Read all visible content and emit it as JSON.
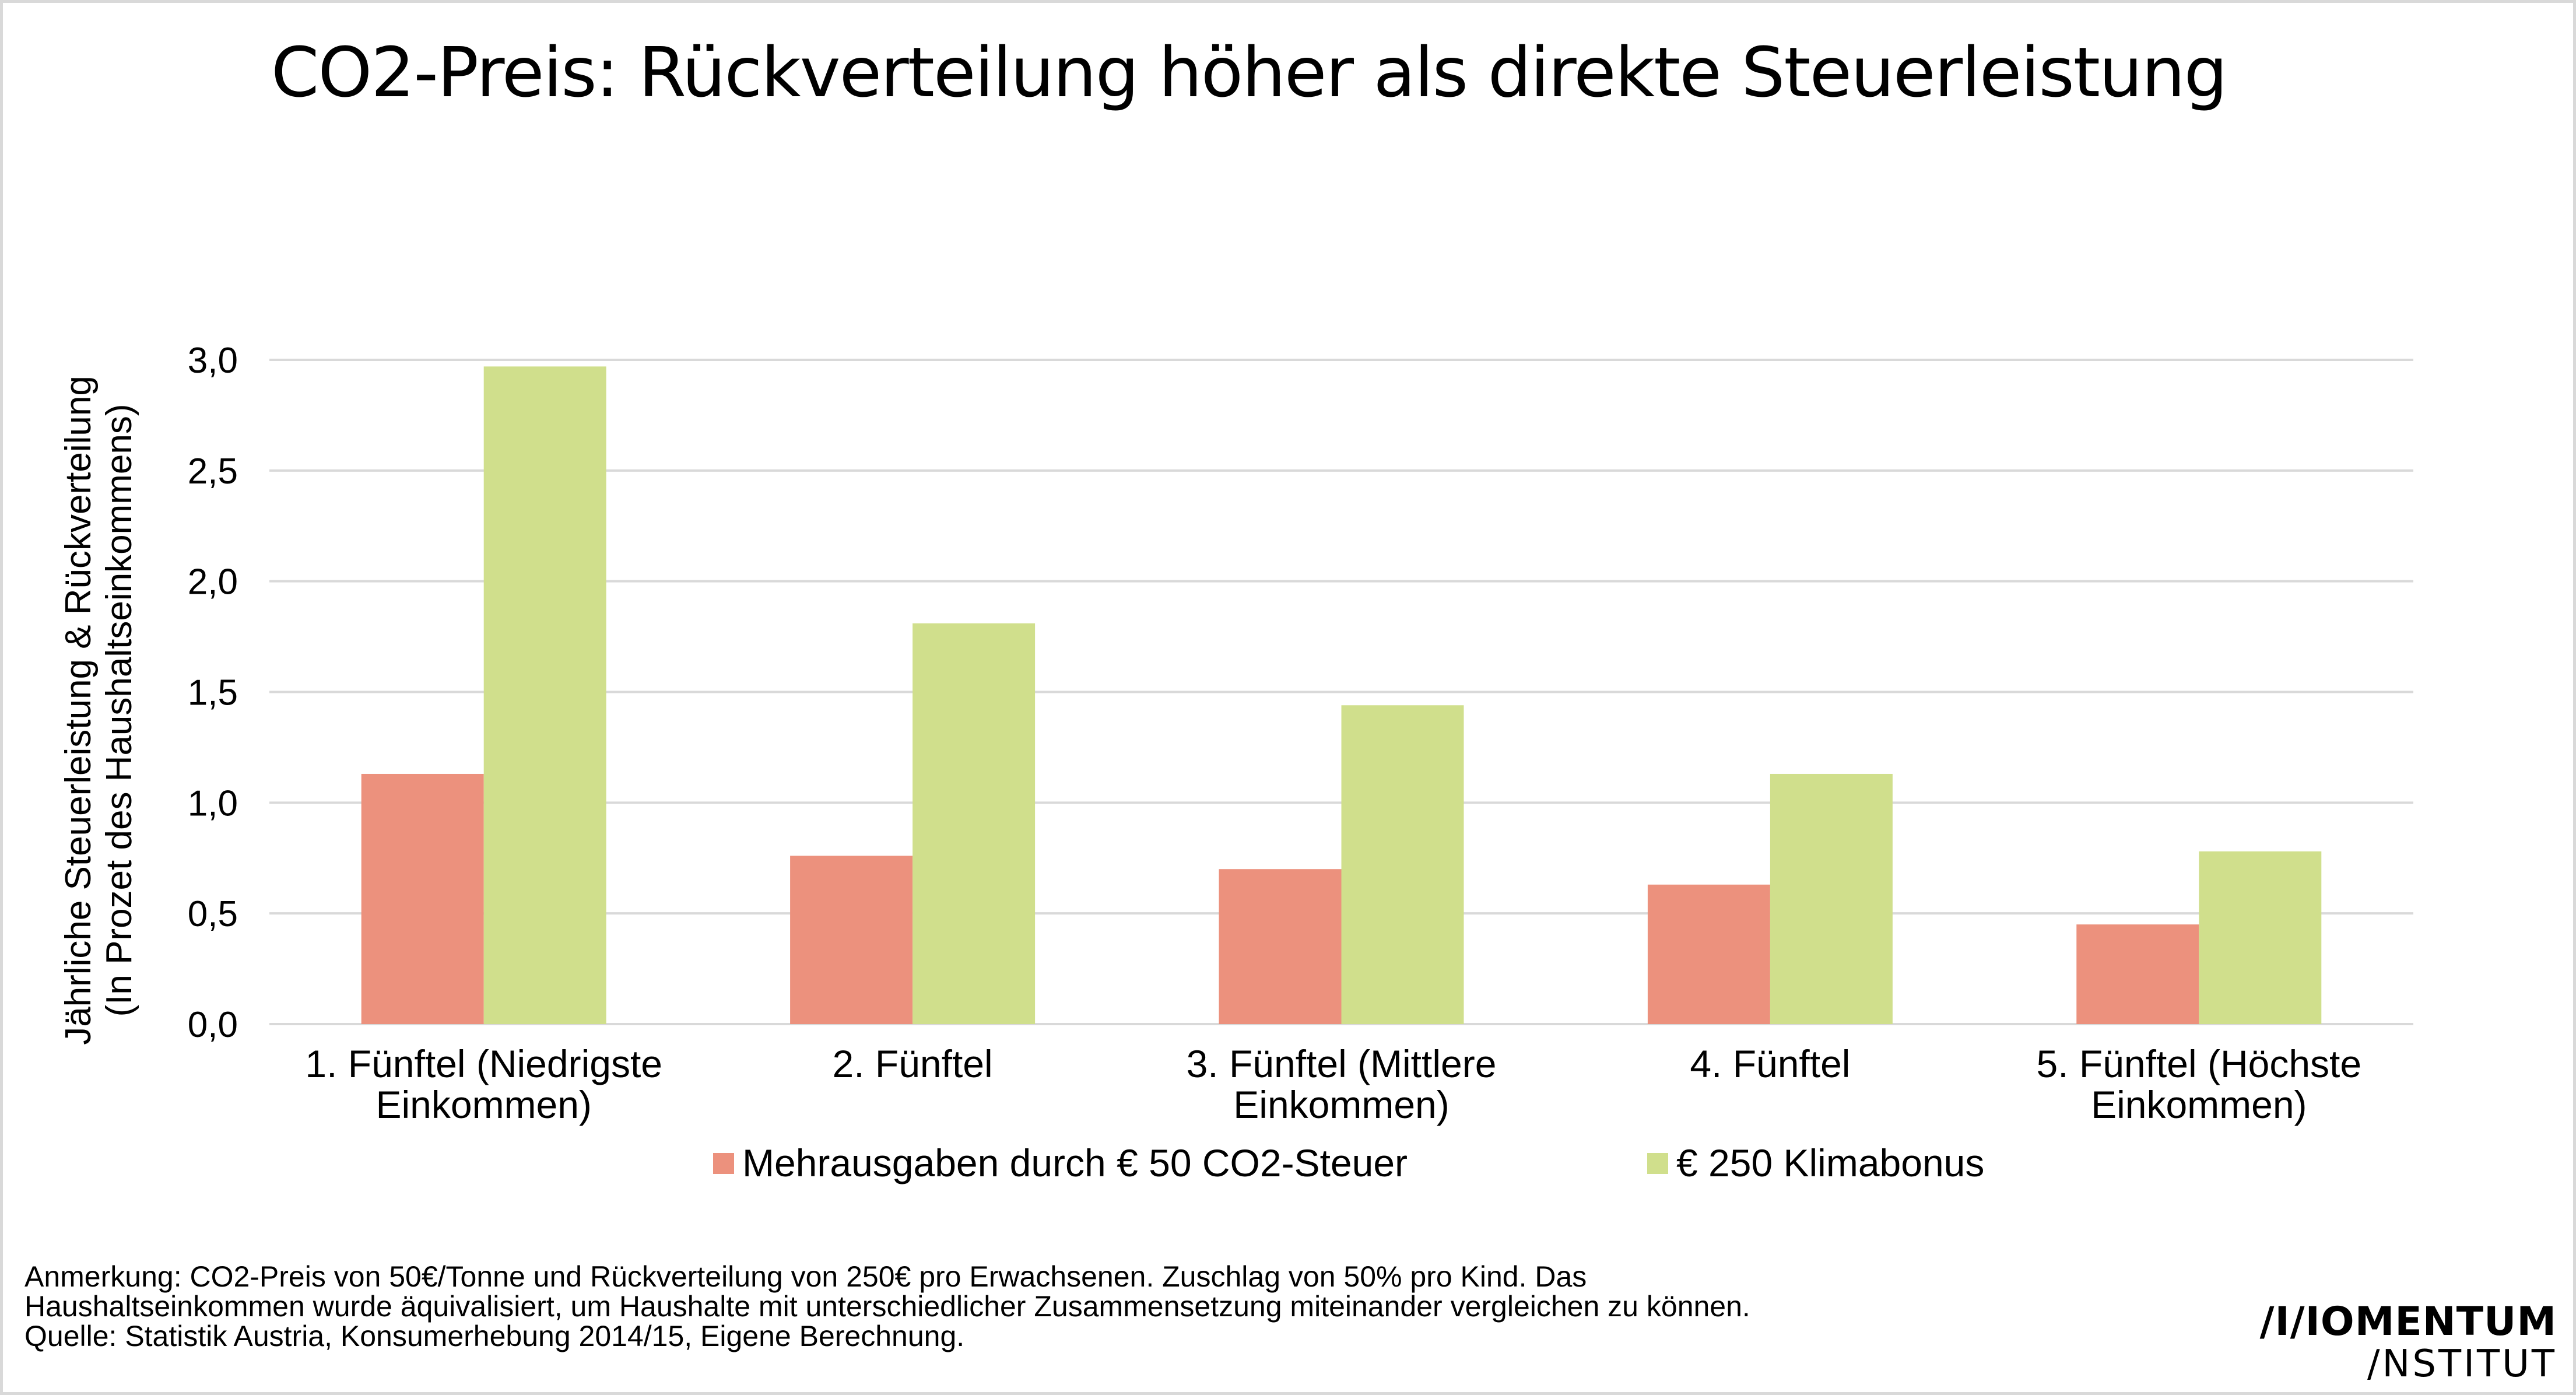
{
  "chart_data": {
    "type": "bar",
    "title": "CO2-Preis: Rückverteilung höher als direkte Steuerleistung",
    "ylabel": [
      "Jährliche Steuerleistung & Rückverteilung",
      "(In Prozet des Haushaltseinkommens)"
    ],
    "xlabel": "",
    "ylim": [
      0,
      3.0
    ],
    "yticks": [
      "0,0",
      "0,5",
      "1,0",
      "1,5",
      "2,0",
      "2,5",
      "3,0"
    ],
    "grid": true,
    "legend_position": "bottom",
    "categories": [
      [
        "1. Fünftel (Niedrigste",
        "Einkommen)"
      ],
      [
        "2. Fünftel"
      ],
      [
        "3. Fünftel (Mittlere",
        "Einkommen)"
      ],
      [
        "4. Fünftel"
      ],
      [
        "5. Fünftel (Höchste",
        "Einkommen)"
      ]
    ],
    "series": [
      {
        "name": "Mehrausgaben durch € 50 CO2-Steuer",
        "color": "#ec917d",
        "values": [
          1.13,
          0.76,
          0.7,
          0.63,
          0.45
        ]
      },
      {
        "name": "€ 250 Klimabonus",
        "color": "#d0df8c",
        "values": [
          2.97,
          1.81,
          1.44,
          1.13,
          0.78
        ]
      }
    ]
  },
  "notes": [
    "Anmerkung: CO2-Preis von 50€/Tonne und Rückverteilung von 250€ pro Erwachsenen. Zuschlag von 50% pro Kind. Das",
    "Haushaltseinkommen wurde äquivalisiert, um Haushalte mit unterschiedlicher Zusammensetzung miteinander vergleichen zu können.",
    "Quelle: Statistik Austria, Konsumerhebung 2014/15, Eigene Berechnung."
  ],
  "logo": {
    "line1": "/I/IOMENTUM",
    "line2": "/NSTITUT"
  }
}
